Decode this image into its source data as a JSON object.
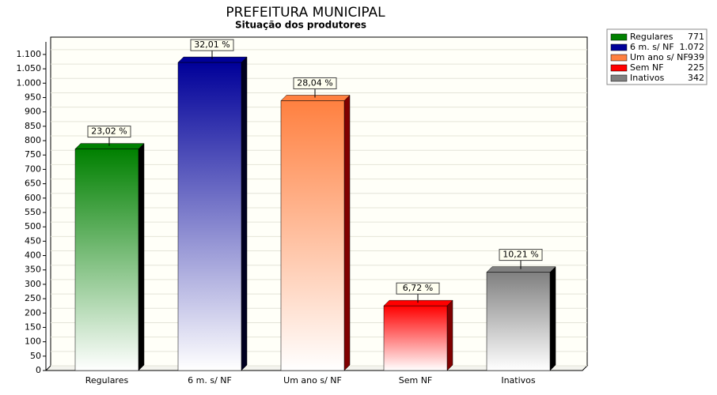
{
  "chart_data": {
    "type": "bar",
    "title": "PREFEITURA MUNICIPAL",
    "subtitle": "Situação dos produtores",
    "categories": [
      "Regulares",
      "6 m. s/ NF",
      "Um ano s/ NF",
      "Sem NF",
      "Inativos"
    ],
    "values": [
      771,
      1072,
      939,
      225,
      342
    ],
    "legend_value_labels": [
      "771",
      "1.072",
      "939",
      "225",
      "342"
    ],
    "percent_values": [
      23.02,
      32.01,
      28.04,
      6.72,
      10.21
    ],
    "percent_labels": [
      "23,02 %",
      "32,01 %",
      "28,04 %",
      "6,72 %",
      "10,21 %"
    ],
    "colors": [
      "#008000",
      "#000099",
      "#ff8040",
      "#ff0000",
      "#808080"
    ],
    "side_colors": [
      "#000000",
      "#000020",
      "#800000",
      "#800000",
      "#000000"
    ],
    "ylim": [
      0,
      1130
    ],
    "yticks": [
      0,
      50,
      100,
      150,
      200,
      250,
      300,
      350,
      400,
      450,
      500,
      550,
      600,
      650,
      700,
      750,
      800,
      850,
      900,
      950,
      {
        "value": 1000,
        "label": "1.000"
      },
      {
        "value": 1050,
        "label": "1.050"
      },
      {
        "value": 1100,
        "label": "1.100"
      }
    ],
    "grid": true,
    "legend": "top-right"
  }
}
